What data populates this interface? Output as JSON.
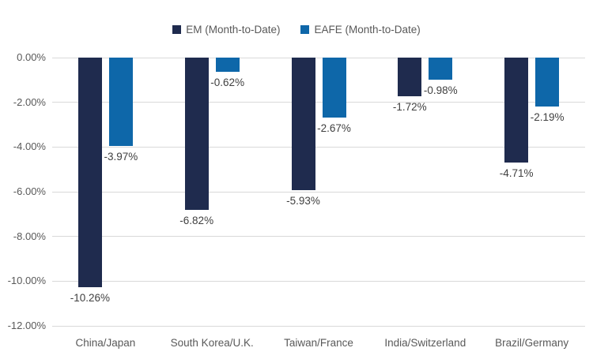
{
  "chart_data": {
    "type": "bar",
    "title": "",
    "categories": [
      "China/Japan",
      "South Korea/U.K.",
      "Taiwan/France",
      "India/Switzerland",
      "Brazil/Germany"
    ],
    "series": [
      {
        "name": "EM (Month-to-Date)",
        "color": "#1f2b4e",
        "values": [
          -10.26,
          -6.82,
          -5.93,
          -1.72,
          -4.71
        ],
        "labels": [
          "-10.26%",
          "-6.82%",
          "-5.93%",
          "-1.72%",
          "-4.71%"
        ]
      },
      {
        "name": "EAFE (Month-to-Date)",
        "color": "#0e67a9",
        "values": [
          -3.97,
          -0.62,
          -2.67,
          -0.98,
          -2.19
        ],
        "labels": [
          "-3.97%",
          "-0.62%",
          "-2.67%",
          "-0.98%",
          "-2.19%"
        ]
      }
    ],
    "y_axis": {
      "ticks": [
        "0.00%",
        "-2.00%",
        "-4.00%",
        "-6.00%",
        "-8.00%",
        "-10.00%",
        "-12.00%"
      ],
      "tick_values": [
        0,
        -2,
        -4,
        -6,
        -8,
        -10,
        -12
      ],
      "min": -12,
      "max": 0
    },
    "legend_position": "top",
    "grid": true,
    "colors": {
      "em": "#1f2b4e",
      "eafe": "#0e67a9",
      "gridline": "#d9d9d9",
      "axis_text": "#595959",
      "value_label_text": "#404040"
    }
  }
}
